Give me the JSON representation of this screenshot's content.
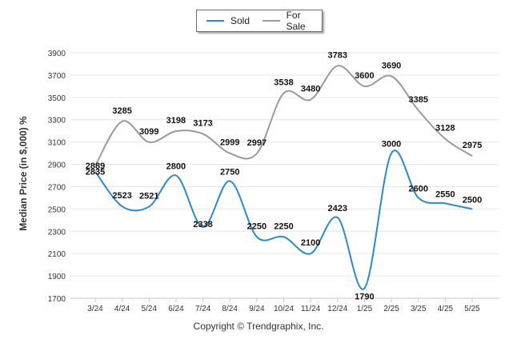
{
  "chart_data": {
    "type": "line",
    "title": "",
    "xlabel": "",
    "ylabel": "Median Price (in $,000) %",
    "ylim": [
      1700,
      3900
    ],
    "yticks": [
      1700,
      1900,
      2100,
      2300,
      2500,
      2700,
      2900,
      3100,
      3300,
      3500,
      3700,
      3900
    ],
    "categories": [
      "3/24",
      "4/24",
      "5/24",
      "6/24",
      "7/24",
      "8/24",
      "9/24",
      "10/24",
      "11/24",
      "12/24",
      "1/25",
      "2/25",
      "3/25",
      "4/25",
      "5/25"
    ],
    "series": [
      {
        "name": "Sold",
        "color": "#2a8ad0",
        "values": [
          2835,
          2523,
          2521,
          2800,
          2338,
          2750,
          2250,
          2250,
          2100,
          2423,
          1790,
          3000,
          2600,
          2550,
          2500
        ]
      },
      {
        "name": "For Sale",
        "color": "#9a9a9a",
        "values": [
          2889,
          3285,
          3099,
          3198,
          3173,
          2999,
          2997,
          3538,
          3480,
          3783,
          3600,
          3690,
          3385,
          3128,
          2975
        ]
      }
    ],
    "legend_position": "top-center",
    "grid": true
  },
  "footer": {
    "copyright": "Copyright © Trendgraphix, Inc."
  }
}
